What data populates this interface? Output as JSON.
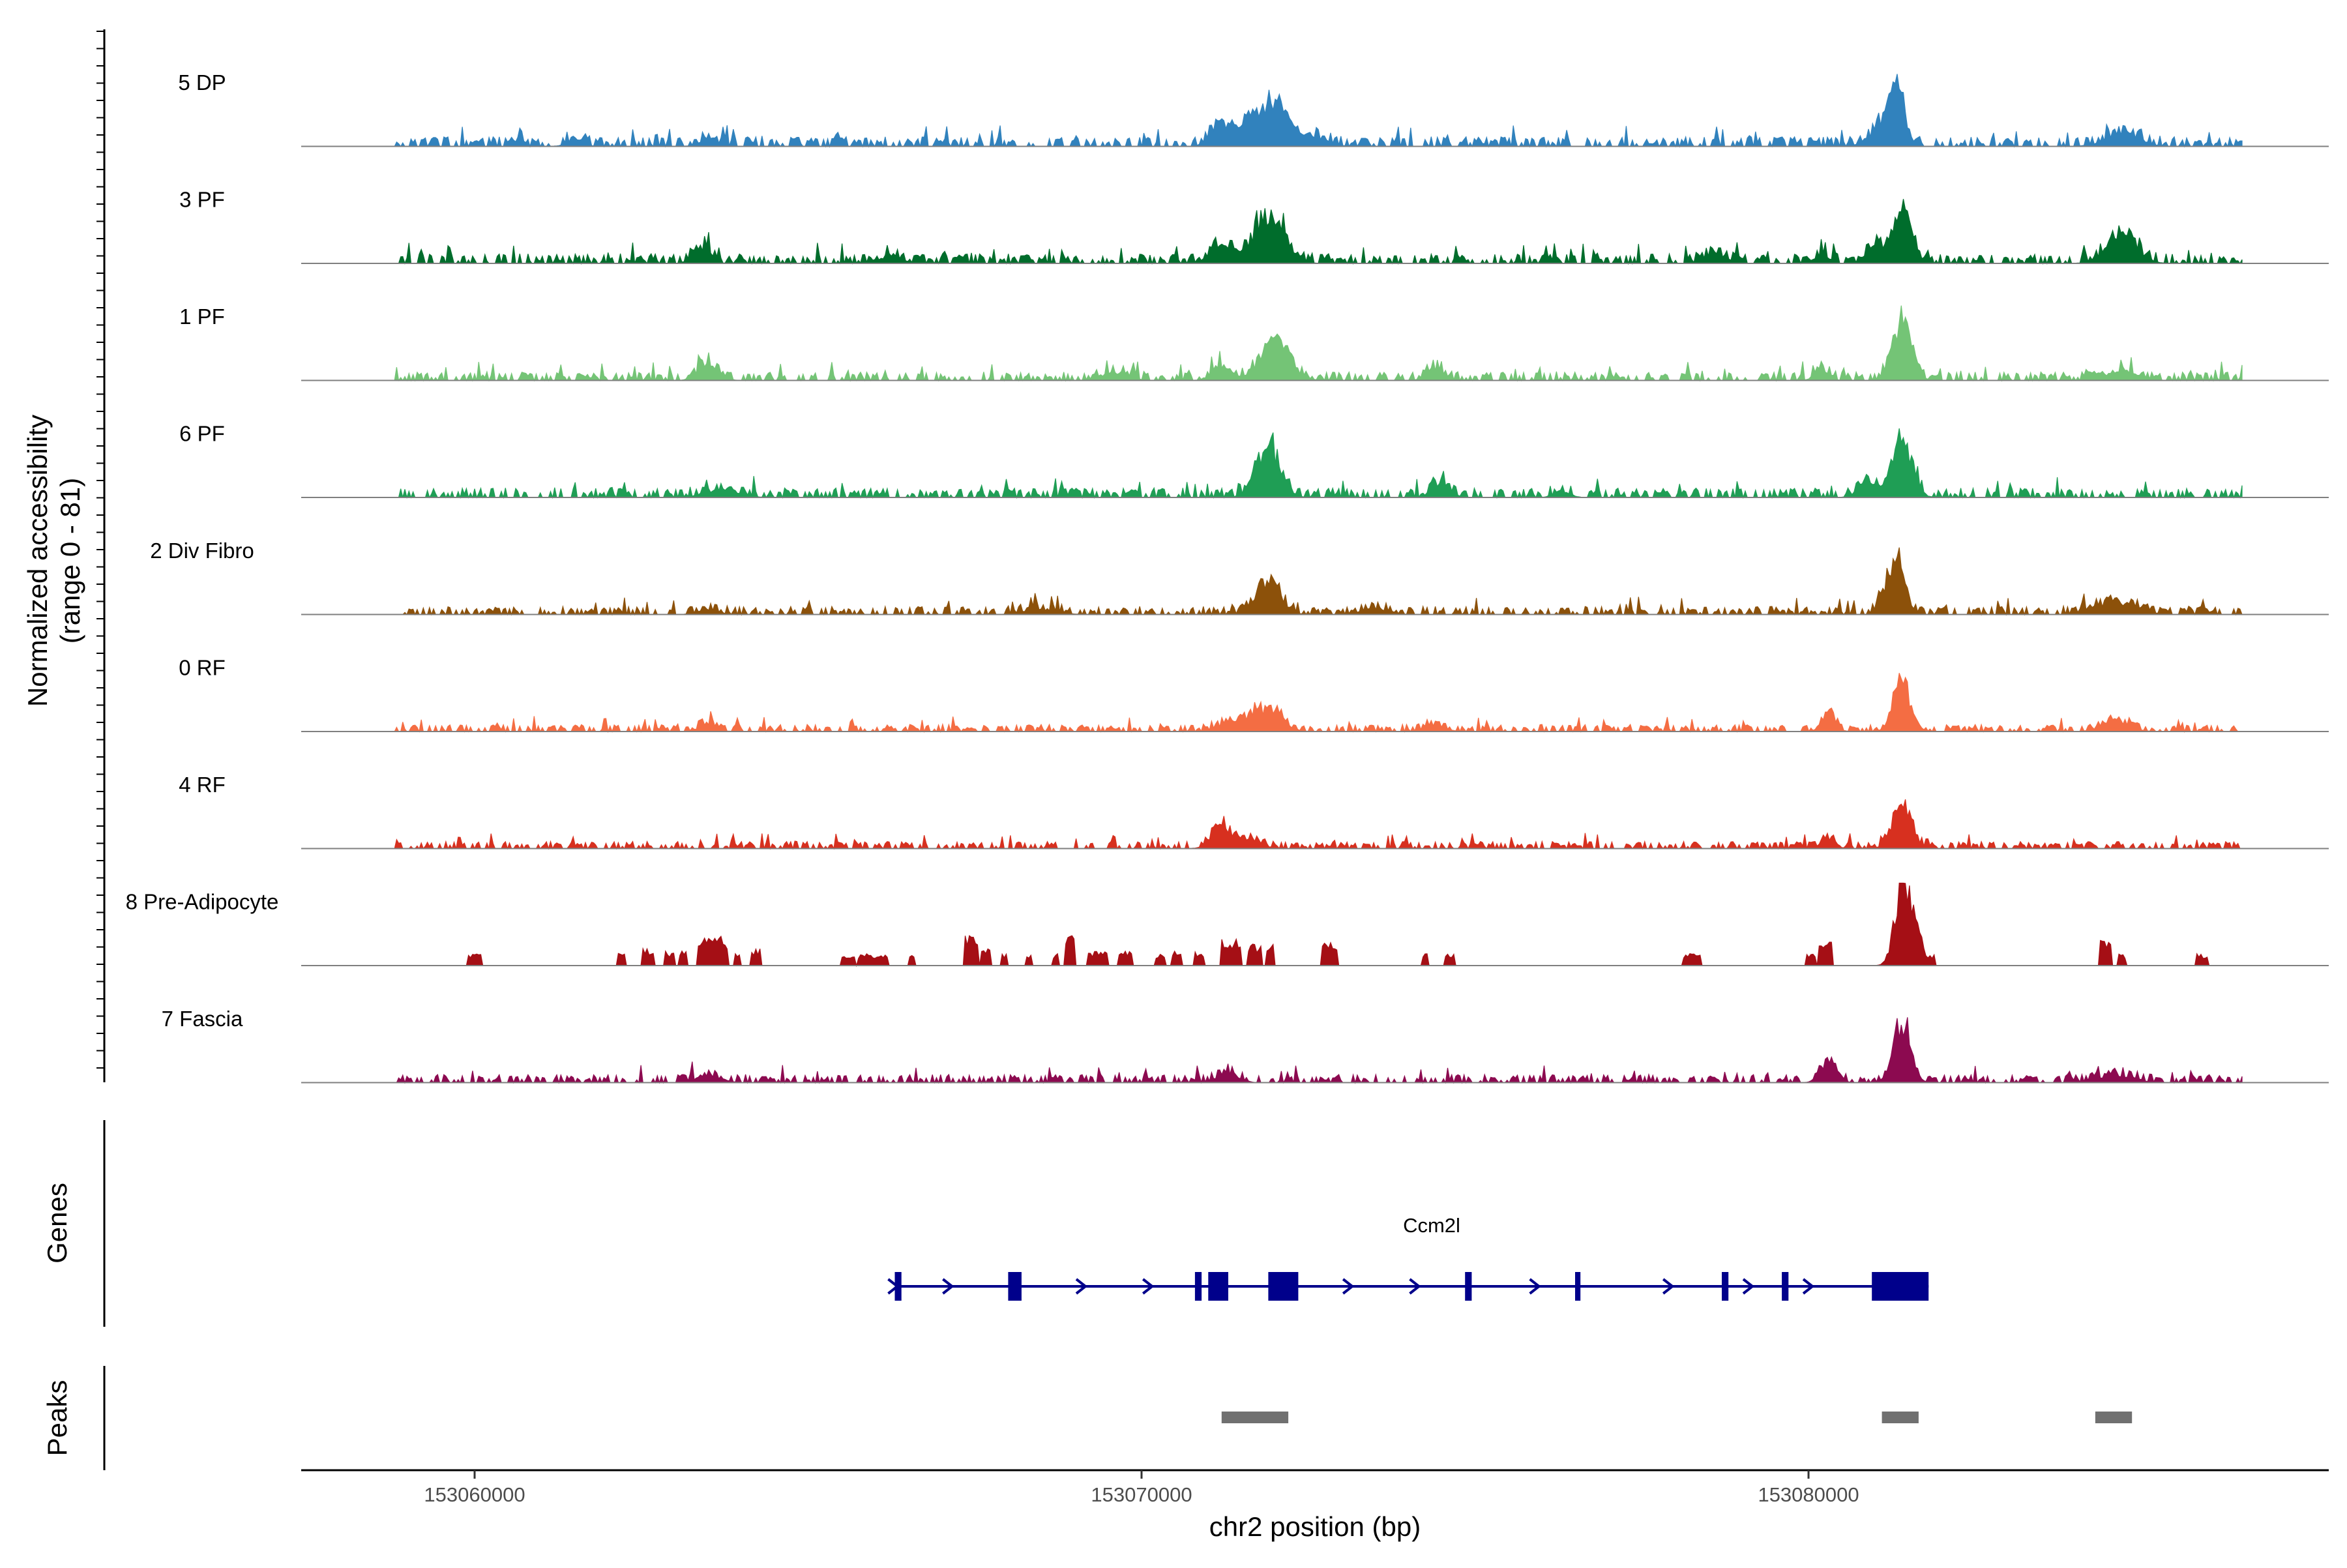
{
  "chart_data": {
    "type": "area",
    "title": "",
    "chromosome": "chr2",
    "xlabel": "chr2 position (bp)",
    "ylabel_line1": "Normalized accessibility",
    "ylabel_line2": "(range 0 - 81)",
    "yrange": [
      0,
      81
    ],
    "xlim": [
      153057400,
      153087800
    ],
    "data_span": [
      153058800,
      153086500
    ],
    "x_ticks": [
      {
        "value": 153060000,
        "label": "153060000"
      },
      {
        "value": 153070000,
        "label": "153070000"
      },
      {
        "value": 153080000,
        "label": "153080000"
      }
    ],
    "tracks": [
      {
        "name": "5 DP",
        "color": "#3182BD",
        "seed": 11,
        "baseline": 6,
        "noise": 7,
        "peaks": [
          [
            153061500,
            7,
            120
          ],
          [
            153063500,
            5,
            150
          ],
          [
            153071200,
            22,
            150
          ],
          [
            153071600,
            18,
            130
          ],
          [
            153072000,
            42,
            220
          ],
          [
            153072600,
            9,
            200
          ],
          [
            153081300,
            58,
            130
          ],
          [
            153081000,
            12,
            160
          ],
          [
            153084700,
            12,
            250
          ]
        ]
      },
      {
        "name": "3 PF",
        "color": "#006D2C",
        "seed": 23,
        "baseline": 6,
        "noise": 7,
        "peaks": [
          [
            153063400,
            15,
            130
          ],
          [
            153066200,
            6,
            200
          ],
          [
            153071200,
            20,
            160
          ],
          [
            153071900,
            45,
            230
          ],
          [
            153078600,
            10,
            150
          ],
          [
            153080200,
            10,
            100
          ],
          [
            153081000,
            18,
            120
          ],
          [
            153081400,
            56,
            130
          ],
          [
            153084700,
            28,
            220
          ]
        ]
      },
      {
        "name": "1 PF",
        "color": "#74C476",
        "seed": 37,
        "baseline": 6,
        "noise": 6,
        "peaks": [
          [
            153063500,
            16,
            150
          ],
          [
            153069600,
            8,
            200
          ],
          [
            153071200,
            12,
            150
          ],
          [
            153072000,
            37,
            220
          ],
          [
            153074400,
            12,
            120
          ],
          [
            153080200,
            12,
            100
          ],
          [
            153081400,
            55,
            140
          ],
          [
            153084700,
            10,
            220
          ]
        ]
      },
      {
        "name": "6 PF",
        "color": "#1F9E55",
        "seed": 41,
        "baseline": 6,
        "noise": 7,
        "peaks": [
          [
            153063700,
            8,
            250
          ],
          [
            153071900,
            50,
            180
          ],
          [
            153074500,
            16,
            130
          ],
          [
            153076300,
            6,
            120
          ],
          [
            153080900,
            14,
            150
          ],
          [
            153081400,
            52,
            150
          ]
        ]
      },
      {
        "name": "2 Div Fibro",
        "color": "#8C510A",
        "seed": 53,
        "baseline": 5,
        "noise": 6,
        "peaks": [
          [
            153063500,
            5,
            150
          ],
          [
            153068500,
            5,
            250
          ],
          [
            153071900,
            32,
            180
          ],
          [
            153073500,
            6,
            200
          ],
          [
            153081300,
            52,
            140
          ],
          [
            153084600,
            12,
            300
          ]
        ]
      },
      {
        "name": "0 RF",
        "color": "#F46D43",
        "seed": 67,
        "baseline": 5,
        "noise": 5,
        "peaks": [
          [
            153063500,
            7,
            130
          ],
          [
            153071400,
            10,
            200
          ],
          [
            153071900,
            22,
            200
          ],
          [
            153074400,
            6,
            150
          ],
          [
            153080300,
            18,
            100
          ],
          [
            153081400,
            48,
            130
          ],
          [
            153084600,
            10,
            200
          ]
        ]
      },
      {
        "name": "4 RF",
        "color": "#D7301F",
        "seed": 79,
        "baseline": 5,
        "noise": 5,
        "peaks": [
          [
            153071200,
            20,
            150
          ],
          [
            153071600,
            10,
            180
          ],
          [
            153080300,
            10,
            100
          ],
          [
            153081400,
            42,
            140
          ]
        ]
      },
      {
        "name": "8 Pre-Adipocyte",
        "color": "#A50F15",
        "seed": 97,
        "baseline": 0,
        "noise": 0,
        "peaks": [
          [
            153081400,
            75,
            110
          ],
          [
            153081600,
            40,
            90
          ]
        ]
      },
      {
        "name": "7 Fascia",
        "color": "#8C0A50",
        "seed": 113,
        "baseline": 5,
        "noise": 6,
        "peaks": [
          [
            153063500,
            6,
            200
          ],
          [
            153071300,
            10,
            150
          ],
          [
            153080300,
            22,
            120
          ],
          [
            153081400,
            58,
            130
          ],
          [
            153084600,
            8,
            250
          ]
        ]
      }
    ],
    "preadipocyte_blocks": [
      [
        153059900,
        153060100,
        10
      ],
      [
        153062150,
        153062250,
        14
      ],
      [
        153062500,
        153062700,
        14
      ],
      [
        153062850,
        153063000,
        12
      ],
      [
        153063050,
        153063200,
        14
      ],
      [
        153063350,
        153063700,
        25
      ],
      [
        153063700,
        153063800,
        18
      ],
      [
        153063900,
        153064000,
        10
      ],
      [
        153064150,
        153064300,
        14
      ],
      [
        153065500,
        153065700,
        10
      ],
      [
        153065750,
        153066200,
        10
      ],
      [
        153066500,
        153066600,
        10
      ],
      [
        153067350,
        153067550,
        25
      ],
      [
        153067600,
        153067750,
        14
      ],
      [
        153067900,
        153068000,
        10
      ],
      [
        153068250,
        153068350,
        10
      ],
      [
        153068650,
        153068750,
        10
      ],
      [
        153068850,
        153069000,
        25
      ],
      [
        153069200,
        153069500,
        12
      ],
      [
        153069650,
        153069850,
        12
      ],
      [
        153070200,
        153070350,
        10
      ],
      [
        153070450,
        153070600,
        14
      ],
      [
        153070800,
        153070950,
        12
      ],
      [
        153071200,
        153071500,
        22
      ],
      [
        153071600,
        153071800,
        18
      ],
      [
        153071850,
        153072000,
        20
      ],
      [
        153072700,
        153072950,
        20
      ],
      [
        153074200,
        153074300,
        10
      ],
      [
        153074550,
        153074700,
        10
      ],
      [
        153078100,
        153078400,
        10
      ],
      [
        153079950,
        153080100,
        10
      ],
      [
        153080150,
        153080350,
        20
      ],
      [
        153081750,
        153081900,
        10
      ],
      [
        153084350,
        153084550,
        22
      ],
      [
        153084650,
        153084750,
        10
      ],
      [
        153085800,
        153086000,
        10
      ]
    ],
    "gene": {
      "name": "Ccm2l",
      "strand": "+",
      "start": 153066300,
      "end": 153081800,
      "color": "#00008B",
      "exons": [
        [
          153066300,
          153066400
        ],
        [
          153068000,
          153068200
        ],
        [
          153070800,
          153070900
        ],
        [
          153071000,
          153071300
        ],
        [
          153071900,
          153072350
        ],
        [
          153074850,
          153074950
        ],
        [
          153076500,
          153076580
        ],
        [
          153078700,
          153078800
        ],
        [
          153079600,
          153079700
        ],
        [
          153080950,
          153081800
        ]
      ],
      "arrows": [
        153066280,
        153067100,
        153069100,
        153070100,
        153073100,
        153074100,
        153075900,
        153077900,
        153079100,
        153080000
      ]
    },
    "peaks": [
      [
        153071200,
        153072200
      ],
      [
        153081100,
        153081650
      ],
      [
        153084300,
        153084850
      ]
    ],
    "panel_titles": {
      "genes": "Genes",
      "peaks": "Peaks"
    }
  }
}
